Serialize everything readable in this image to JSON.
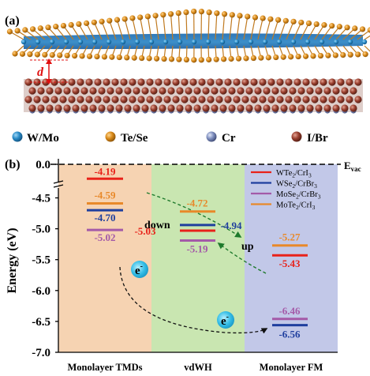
{
  "panel_a": {
    "label": "(a)",
    "distance_label": "d",
    "legend": [
      {
        "label": "W/Mo",
        "color": "#2a8cc8"
      },
      {
        "label": "Te/Se",
        "color": "#d98a1a"
      },
      {
        "label": "Cr",
        "color": "#7f8fbf"
      },
      {
        "label": "I/Br",
        "color": "#9a4030"
      }
    ]
  },
  "panel_b": {
    "label": "(b)"
  },
  "chart_data": {
    "type": "bar",
    "ylabel": "Energy (eV)",
    "evac_label": "E",
    "evac_sub": "vac",
    "evac_value": 0.0,
    "evac_tick": "0.0",
    "ylim": [
      -7.0,
      -4.0
    ],
    "yticks": [
      -4.5,
      -5.0,
      -5.5,
      -6.0,
      -6.5,
      -7.0
    ],
    "ytick_labels": [
      "-4.5",
      "-5.0",
      "-5.5",
      "-6.0",
      "-6.5",
      "-7.0"
    ],
    "categories": [
      "Monolayer TMDs",
      "vdWH",
      "Monolayer FM"
    ],
    "region_colors": [
      "#f6d3b2",
      "#c9e6b1",
      "#c2c8e8"
    ],
    "series": [
      {
        "name": "WTe2/CrI3",
        "name_main": "WTe",
        "name_sub": "2",
        "name_mid": "/CrI",
        "name_sub2": "3",
        "color": "#e8221a",
        "values": [
          -4.19,
          -5.03,
          -5.43
        ],
        "labels": [
          "-4.19",
          "-5.03",
          "-5.43"
        ]
      },
      {
        "name": "WSe2/CrBr3",
        "name_main": "WSe",
        "name_sub": "2",
        "name_mid": "/CrBr",
        "name_sub2": "3",
        "color": "#1f3f9e",
        "values": [
          -4.7,
          -4.94,
          -6.56
        ],
        "labels": [
          "-4.70",
          "-4.94",
          "-6.56"
        ]
      },
      {
        "name": "MoSe2/CrBr3",
        "name_main": "MoSe",
        "name_sub": "2",
        "name_mid": "/CrBr",
        "name_sub2": "3",
        "color": "#a45aa8",
        "values": [
          -5.02,
          -5.19,
          -6.46
        ],
        "labels": [
          "-5.02",
          "-5.19",
          "-6.46"
        ]
      },
      {
        "name": "MoTe2/CrI3",
        "name_main": "MoTe",
        "name_sub": "2",
        "name_mid": "/CrI",
        "name_sub2": "3",
        "color": "#e8892a",
        "values": [
          -4.59,
          -4.72,
          -5.27
        ],
        "labels": [
          "-4.59",
          "-4.72",
          "-5.27"
        ]
      }
    ],
    "annotations": {
      "down": "down",
      "up": "up",
      "electron_main": "e",
      "electron_sup": "-"
    }
  }
}
